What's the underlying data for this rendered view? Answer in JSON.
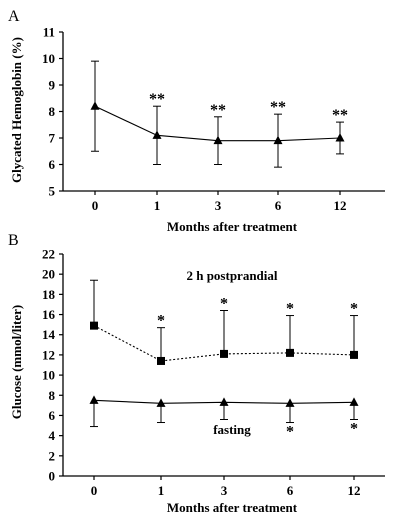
{
  "chart_data": [
    {
      "panel": "A",
      "type": "line",
      "x": [
        "0",
        "1",
        "3",
        "6",
        "12"
      ],
      "xlabel": "Months after treatment",
      "ylabel": "Glycated Hemoglobin (%)",
      "ylim": [
        5,
        11
      ],
      "yticks": [
        "5",
        "6",
        "7",
        "8",
        "9",
        "10",
        "11"
      ],
      "grid": false,
      "series": [
        {
          "marker": "triangle",
          "line": "solid",
          "values": [
            8.2,
            7.1,
            6.9,
            6.9,
            7.0
          ],
          "error_upper": [
            9.9,
            8.2,
            7.8,
            7.9,
            7.6
          ],
          "error_lower": [
            6.5,
            6.0,
            6.0,
            5.9,
            6.4
          ],
          "error_direction": "both",
          "annotations": [
            "",
            "**",
            "**",
            "**",
            "**"
          ]
        }
      ]
    },
    {
      "panel": "B",
      "type": "line",
      "x": [
        "0",
        "1",
        "3",
        "6",
        "12"
      ],
      "xlabel": "Months after treatment",
      "ylabel": "Glucose (mmol/liter)",
      "ylim": [
        0,
        22
      ],
      "yticks": [
        "0",
        "2",
        "4",
        "6",
        "8",
        "10",
        "12",
        "14",
        "16",
        "18",
        "20",
        "22"
      ],
      "grid": false,
      "series": [
        {
          "name": "2 h postprandial",
          "marker": "square",
          "line": "dotted",
          "values": [
            14.9,
            11.4,
            12.1,
            12.2,
            12.0
          ],
          "error_upper": [
            19.4,
            14.7,
            16.4,
            15.9,
            15.9
          ],
          "error_direction": "up",
          "annotations": [
            "",
            "*",
            "*",
            "*",
            "*"
          ],
          "annotation_side": "above"
        },
        {
          "name": "fasting",
          "marker": "triangle",
          "line": "solid",
          "values": [
            7.5,
            7.2,
            7.3,
            7.2,
            7.3
          ],
          "error_upper": [
            7.5,
            7.2,
            7.3,
            7.2,
            7.3
          ],
          "error_lower": [
            4.9,
            5.3,
            5.6,
            5.3,
            5.6
          ],
          "error_direction": "down",
          "annotations": [
            "",
            "",
            "",
            "*",
            "*"
          ],
          "annotation_side": "below"
        }
      ]
    }
  ]
}
